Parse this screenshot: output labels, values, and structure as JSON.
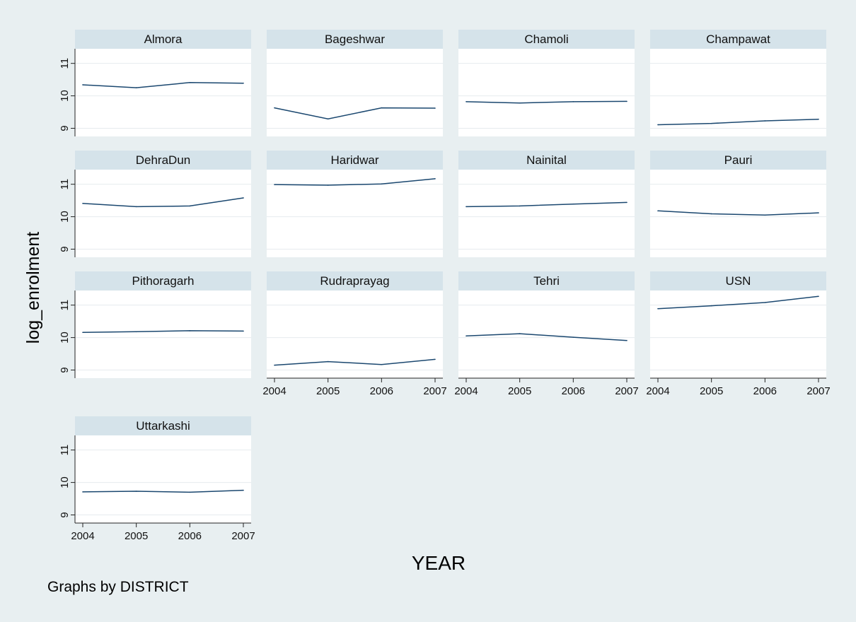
{
  "chart_data": {
    "type": "line",
    "xlabel": "YEAR",
    "ylabel": "log_enrolment",
    "note": "Graphs by DISTRICT",
    "x": [
      2004,
      2005,
      2006,
      2007
    ],
    "x_ticks": [
      2004,
      2005,
      2006,
      2007
    ],
    "y_ticks": [
      9,
      10,
      11
    ],
    "ylim": [
      8.75,
      11.45
    ],
    "xlim": [
      2004,
      2007
    ],
    "grid": true,
    "line_color": "#1a476f",
    "panel_header_color": "#d5e3ea",
    "background_color": "#e8eff1",
    "panels": [
      {
        "name": "Almora",
        "values": [
          10.34,
          10.25,
          10.41,
          10.39
        ]
      },
      {
        "name": "Bageshwar",
        "values": [
          9.63,
          9.29,
          9.63,
          9.62
        ]
      },
      {
        "name": "Chamoli",
        "values": [
          9.82,
          9.78,
          9.82,
          9.83
        ]
      },
      {
        "name": "Champawat",
        "values": [
          9.11,
          9.15,
          9.23,
          9.28
        ]
      },
      {
        "name": "DehraDun",
        "values": [
          10.41,
          10.31,
          10.33,
          10.58
        ]
      },
      {
        "name": "Haridwar",
        "values": [
          10.99,
          10.97,
          11.01,
          11.17
        ]
      },
      {
        "name": "Nainital",
        "values": [
          10.31,
          10.33,
          10.39,
          10.44
        ]
      },
      {
        "name": "Pauri",
        "values": [
          10.18,
          10.09,
          10.05,
          10.12
        ]
      },
      {
        "name": "Pithoragarh",
        "values": [
          10.16,
          10.18,
          10.21,
          10.2
        ]
      },
      {
        "name": "Rudraprayag",
        "values": [
          9.15,
          9.26,
          9.17,
          9.33
        ]
      },
      {
        "name": "Tehri",
        "values": [
          10.05,
          10.12,
          10.01,
          9.91
        ]
      },
      {
        "name": "USN",
        "values": [
          10.89,
          10.98,
          11.08,
          11.27
        ]
      },
      {
        "name": "Uttarkashi",
        "values": [
          9.71,
          9.73,
          9.7,
          9.76
        ]
      }
    ]
  }
}
